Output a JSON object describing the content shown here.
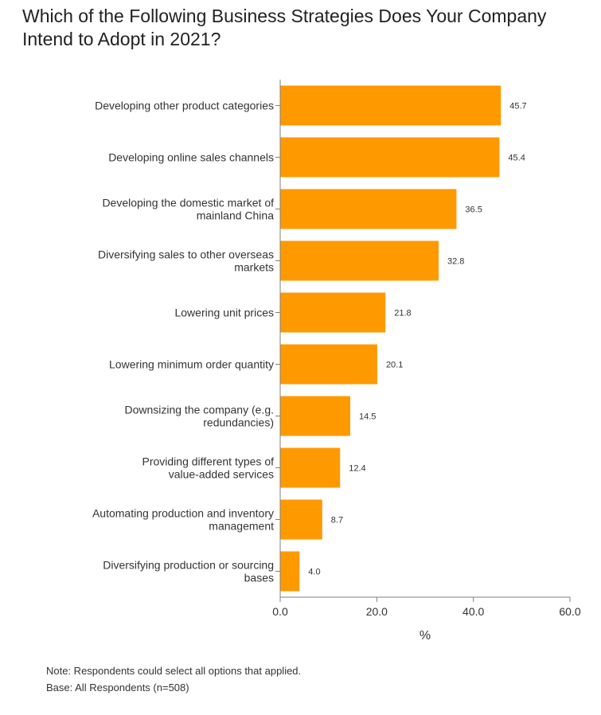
{
  "title": "Which of the Following Business Strategies Does Your Company Intend to Adopt in 2021?",
  "notes": {
    "note": "Note: Respondents could select all options that applied.",
    "base": "Base: All Respondents (n=508)"
  },
  "colors": {
    "bar": "#FF9900",
    "axis": "#7f7f7f",
    "text": "#333333"
  },
  "chart_data": {
    "type": "bar",
    "orientation": "horizontal",
    "categories": [
      [
        "Developing other product categories"
      ],
      [
        "Developing online sales channels"
      ],
      [
        "Developing the domestic market of",
        "mainland China"
      ],
      [
        "Diversifying sales to other overseas",
        "markets"
      ],
      [
        "Lowering unit prices"
      ],
      [
        "Lowering minimum order quantity"
      ],
      [
        "Downsizing the company (e.g.",
        "redundancies)"
      ],
      [
        "Providing different types of",
        "value-added services"
      ],
      [
        "Automating production and inventory",
        "management"
      ],
      [
        "Diversifying production or sourcing",
        "bases"
      ]
    ],
    "values": [
      45.7,
      45.4,
      36.5,
      32.8,
      21.8,
      20.1,
      14.5,
      12.4,
      8.7,
      4.0
    ],
    "value_labels": [
      "45.7",
      "45.4",
      "36.5",
      "32.8",
      "21.8",
      "20.1",
      "14.5",
      "12.4",
      "8.7",
      "4.0"
    ],
    "xlim": [
      0,
      60
    ],
    "xticks": [
      0,
      20,
      40,
      60
    ],
    "xtick_labels": [
      "0.0",
      "20.0",
      "40.0",
      "60.0"
    ],
    "xlabel": "%",
    "ylabel": "",
    "grid": false,
    "legend": "none"
  }
}
